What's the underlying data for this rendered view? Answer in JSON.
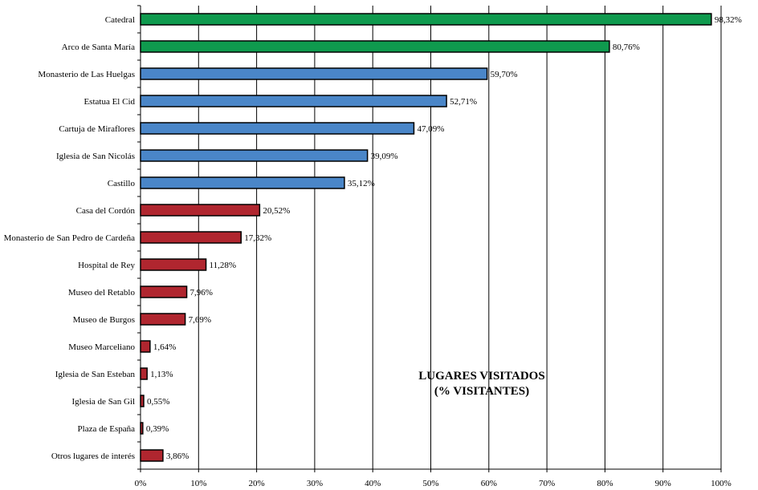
{
  "chart_data": {
    "type": "bar",
    "orientation": "horizontal",
    "title_lines": [
      "LUGARES VISITADOS",
      "(% VISITANTES)"
    ],
    "xlabel": "",
    "ylabel": "",
    "xlim": [
      0,
      100
    ],
    "x_ticks": [
      "0%",
      "10%",
      "20%",
      "30%",
      "40%",
      "50%",
      "60%",
      "70%",
      "80%",
      "90%",
      "100%"
    ],
    "grid": "vertical",
    "legend": "none",
    "categories": [
      "Catedral",
      "Arco de Santa María",
      "Monasterio de Las Huelgas",
      "Estatua El Cid",
      "Cartuja de Miraflores",
      "Iglesia de San Nicolás",
      "Castillo",
      "Casa del Cordón",
      "Monasterio de San Pedro de Cardeña",
      "Hospital de Rey",
      "Museo del Retablo",
      "Museo de Burgos",
      "Museo Marceliano",
      "Iglesia de San Esteban",
      "Iglesia de San Gil",
      "Plaza de España",
      "Otros lugares de interés"
    ],
    "values": [
      98.32,
      80.76,
      59.7,
      52.71,
      47.09,
      39.09,
      35.12,
      20.52,
      17.32,
      11.28,
      7.96,
      7.69,
      1.64,
      1.13,
      0.55,
      0.39,
      3.86
    ],
    "value_labels": [
      "98,32%",
      "80,76%",
      "59,70%",
      "52,71%",
      "47,09%",
      "39,09%",
      "35,12%",
      "20,52%",
      "17,32%",
      "11,28%",
      "7,96%",
      "7,69%",
      "1,64%",
      "1,13%",
      "0,55%",
      "0,39%",
      "3,86%"
    ],
    "bar_colors": [
      "#0f9a4e",
      "#0f9a4e",
      "#4a86c8",
      "#4a86c8",
      "#4a86c8",
      "#4a86c8",
      "#4a86c8",
      "#b0262f",
      "#b0262f",
      "#b0262f",
      "#b0262f",
      "#b0262f",
      "#b0262f",
      "#b0262f",
      "#b0262f",
      "#b0262f",
      "#b0262f"
    ]
  }
}
